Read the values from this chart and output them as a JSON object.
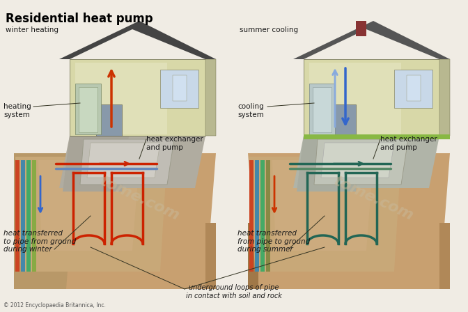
{
  "title": "Residential heat pump",
  "background_color": "#f0ece4",
  "fig_bg": "#f0ece4",
  "copyright": "© 2012 Encyclopaedia Britannica, Inc.",
  "underground_label": "underground loops of pipe\nin contact with soil and rock",
  "left_panel": {
    "season_label": "winter heating",
    "system_label": "heating\nsystem",
    "exchanger_label": "heat exchanger\nand pump",
    "ground_label": "heat transferred\nto pipe from ground\nduring winter"
  },
  "right_panel": {
    "season_label": "summer cooling",
    "system_label": "cooling\nsystem",
    "exchanger_label": "heat exchanger\nand pump",
    "ground_label": "heat transferred\nfrom pipe to ground\nduring summer"
  },
  "label_fontsize": 7.5,
  "label_color": "#1a1a1a",
  "title_fontsize": 12,
  "watermark_left": "tom",
  "watermark_right": "tome.com",
  "house_fill": "#d8d8a8",
  "house_edge": "#666644",
  "roof_fill": "#444444",
  "ground_top": "#c8a878",
  "ground_mid": "#b89060",
  "ground_deep": "#a07848",
  "basement_fill": "#aaa898",
  "pipe_red": "#cc2200",
  "pipe_green": "#447744",
  "pipe_teal": "#226655",
  "pipe_blue": "#3355aa",
  "arrow_red": "#cc3300",
  "arrow_blue": "#3366cc",
  "arrow_light_blue": "#88aadd",
  "grass_color": "#88b844",
  "line_color": "#555544",
  "annotation_color": "#333322"
}
